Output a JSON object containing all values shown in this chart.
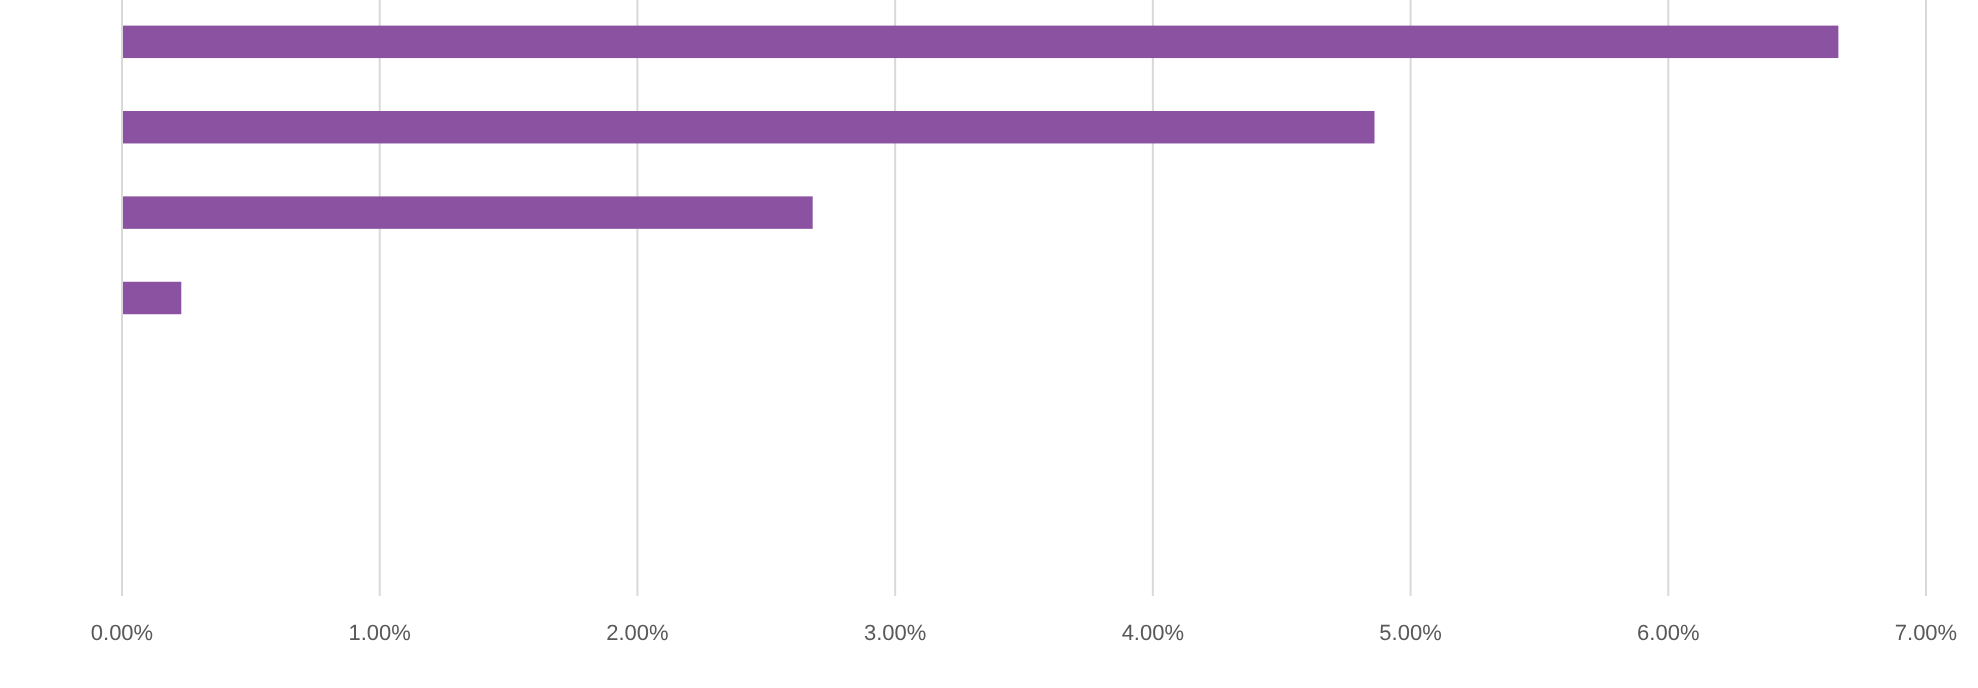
{
  "chart_data": {
    "type": "bar",
    "orientation": "horizontal",
    "categories": [
      null,
      null,
      null,
      null,
      null,
      null,
      null
    ],
    "values": [
      6.66,
      4.86,
      2.68,
      0.23,
      0,
      0,
      0
    ],
    "color": "#8b52a1",
    "xlim": [
      0,
      7
    ],
    "xticks": [
      {
        "value": 0,
        "label": "0.00%"
      },
      {
        "value": 1,
        "label": "1.00%"
      },
      {
        "value": 2,
        "label": "2.00%"
      },
      {
        "value": 3,
        "label": "3.00%"
      },
      {
        "value": 4,
        "label": "4.00%"
      },
      {
        "value": 5,
        "label": "5.00%"
      },
      {
        "value": 6,
        "label": "6.00%"
      },
      {
        "value": 7,
        "label": "7.00%"
      }
    ],
    "grid": "x"
  }
}
